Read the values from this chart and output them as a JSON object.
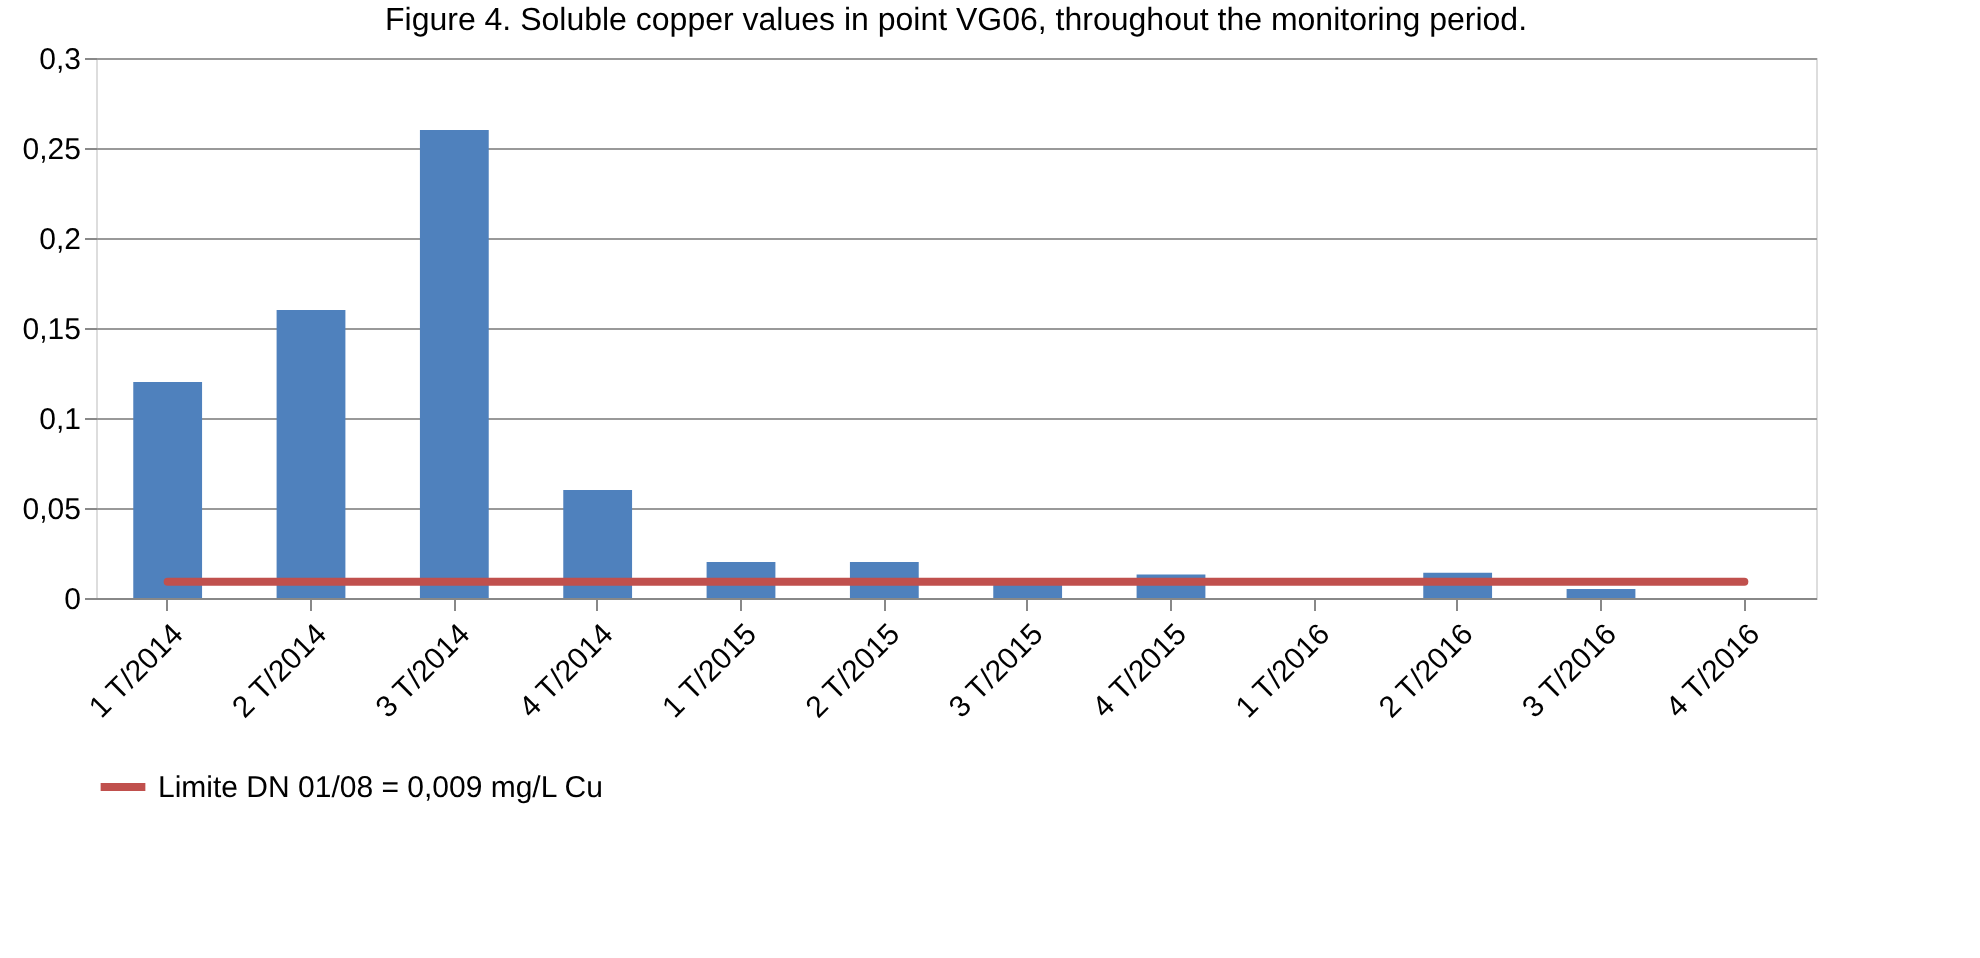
{
  "chart_data": {
    "type": "bar",
    "title": "Figure 4. Soluble copper values in point VG06, throughout the monitoring period.",
    "categories": [
      "1 T/2014",
      "2 T/2014",
      "3 T/2014",
      "4 T/2014",
      "1 T/2015",
      "2 T/2015",
      "3 T/2015",
      "4 T/2015",
      "1 T/2016",
      "2 T/2016",
      "3 T/2016",
      "4 T/2016"
    ],
    "series": [
      {
        "color": "#4f81bd",
        "values": [
          0.12,
          0.16,
          0.26,
          0.06,
          0.02,
          0.02,
          0.008,
          0.013,
          null,
          0.014,
          0.005,
          null
        ]
      }
    ],
    "ylim": [
      0,
      0.3
    ],
    "yticks": [
      {
        "value": 0,
        "label": "0"
      },
      {
        "value": 0.05,
        "label": "0,05"
      },
      {
        "value": 0.1,
        "label": "0,1"
      },
      {
        "value": 0.15,
        "label": "0,15"
      },
      {
        "value": 0.2,
        "label": "0,2"
      },
      {
        "value": 0.25,
        "label": "0,25"
      },
      {
        "value": 0.3,
        "label": "0,3"
      }
    ],
    "ref_lines": [
      {
        "axis": "y",
        "value": 0.009,
        "label": "Limite DN 01/08 = 0,009 mg/L Cu",
        "color": "#c0504d"
      }
    ],
    "grid": "y",
    "legend": "bottom"
  }
}
